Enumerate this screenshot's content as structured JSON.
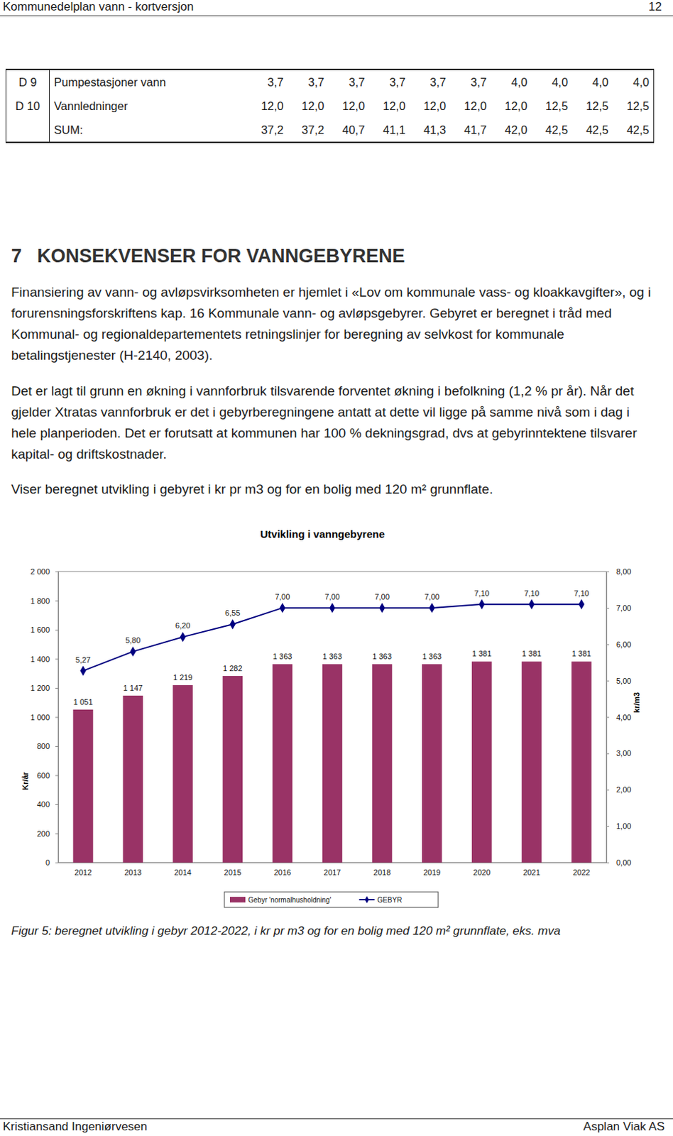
{
  "header": {
    "title": "Kommunedelplan vann - kortversjon",
    "page": "12"
  },
  "table": {
    "rows": [
      {
        "code": "D 9",
        "name": "Pumpestasjoner vann",
        "values": [
          "3,7",
          "3,7",
          "3,7",
          "3,7",
          "3,7",
          "3,7",
          "4,0",
          "4,0",
          "4,0",
          "4,0"
        ]
      },
      {
        "code": "D 10",
        "name": "Vannledninger",
        "values": [
          "12,0",
          "12,0",
          "12,0",
          "12,0",
          "12,0",
          "12,0",
          "12,0",
          "12,5",
          "12,5",
          "12,5"
        ]
      },
      {
        "name": "SUM:",
        "values": [
          "37,2",
          "37,2",
          "40,7",
          "41,1",
          "41,3",
          "41,7",
          "42,0",
          "42,5",
          "42,5",
          "42,5"
        ]
      }
    ]
  },
  "section": {
    "number": "7",
    "title": "KONSEKVENSER FOR VANNGEBYRENE"
  },
  "paragraphs": [
    "Finansiering av vann- og avløpsvirksomheten er hjemlet i «Lov om kommunale vass- og kloakkavgifter», og i forurensningsforskriftens kap. 16 Kommunale vann- og avløpsgebyrer. Gebyret er beregnet i tråd med Kommunal- og regionaldepartementets retningslinjer for beregning av selvkost for kommunale betalingstjenester (H-2140, 2003).",
    "Det er lagt til grunn en økning i vannforbruk tilsvarende forventet økning i befolkning (1,2 % pr år). Når det gjelder Xtratas vannforbruk er det i gebyrberegningene antatt at dette vil ligge på samme nivå som i dag i hele planperioden. Det er forutsatt at kommunen har 100 % dekningsgrad, dvs at gebyrinntektene tilsvarer kapital- og driftskostnader.",
    "Viser beregnet utvikling i gebyret i kr pr m3 og for en bolig med 120 m² grunnflate."
  ],
  "chart_data": {
    "type": "bar",
    "title": "Utvikling i vanngebyrene",
    "categories": [
      "2012",
      "2013",
      "2014",
      "2015",
      "2016",
      "2017",
      "2018",
      "2019",
      "2020",
      "2021",
      "2022"
    ],
    "y_label": "Kr/år",
    "y2_label": "kr/m3",
    "ylim": [
      0,
      2000
    ],
    "yticks": [
      0,
      200,
      400,
      600,
      800,
      {
        "value": 1000,
        "label": "1 000"
      },
      {
        "value": 1200,
        "label": "1 200"
      },
      {
        "value": 1400,
        "label": "1 400"
      },
      {
        "value": 1600,
        "label": "1 600"
      },
      {
        "value": 1800,
        "label": "1 800"
      },
      {
        "value": 2000,
        "label": "2 000"
      }
    ],
    "y2lim": [
      0,
      8
    ],
    "y2ticks": [
      {
        "value": 0,
        "label": "0,00"
      },
      {
        "value": 1,
        "label": "1,00"
      },
      {
        "value": 2,
        "label": "2,00"
      },
      {
        "value": 3,
        "label": "3,00"
      },
      {
        "value": 4,
        "label": "4,00"
      },
      {
        "value": 5,
        "label": "5,00"
      },
      {
        "value": 6,
        "label": "6,00"
      },
      {
        "value": 7,
        "label": "7,00"
      },
      {
        "value": 8,
        "label": "8,00"
      }
    ],
    "grid": false,
    "legend": "bottom",
    "data_labels": true,
    "series": [
      {
        "name": "Gebyr 'normalhusholdning'",
        "type": "bar",
        "color": "#993366",
        "values": [
          1051,
          1147,
          1219,
          1282,
          1363,
          1363,
          1363,
          1363,
          1381,
          1381,
          1381
        ],
        "value_labels": [
          "1 051",
          "1 147",
          "1 219",
          "1 282",
          "1 363",
          "1 363",
          "1 363",
          "1 363",
          "1 381",
          "1 381",
          "1 381"
        ]
      },
      {
        "name": "GEBYR",
        "type": "line",
        "axis": "y2",
        "color": "#000080",
        "marker": "diamond",
        "values": [
          5.27,
          5.8,
          6.2,
          6.55,
          7.0,
          7.0,
          7.0,
          7.0,
          7.1,
          7.1,
          7.1
        ],
        "value_labels": [
          "5,27",
          "5,80",
          "6,20",
          "6,55",
          "7,00",
          "7,00",
          "7,00",
          "7,00",
          "7,10",
          "7,10",
          "7,10"
        ]
      }
    ]
  },
  "caption": "Figur 5: beregnet utvikling i gebyr 2012-2022, i kr pr m3 og for en bolig med 120 m² grunnflate, eks. mva",
  "footer": {
    "left": "Kristiansand Ingeniørvesen",
    "right": "Asplan Viak AS"
  }
}
